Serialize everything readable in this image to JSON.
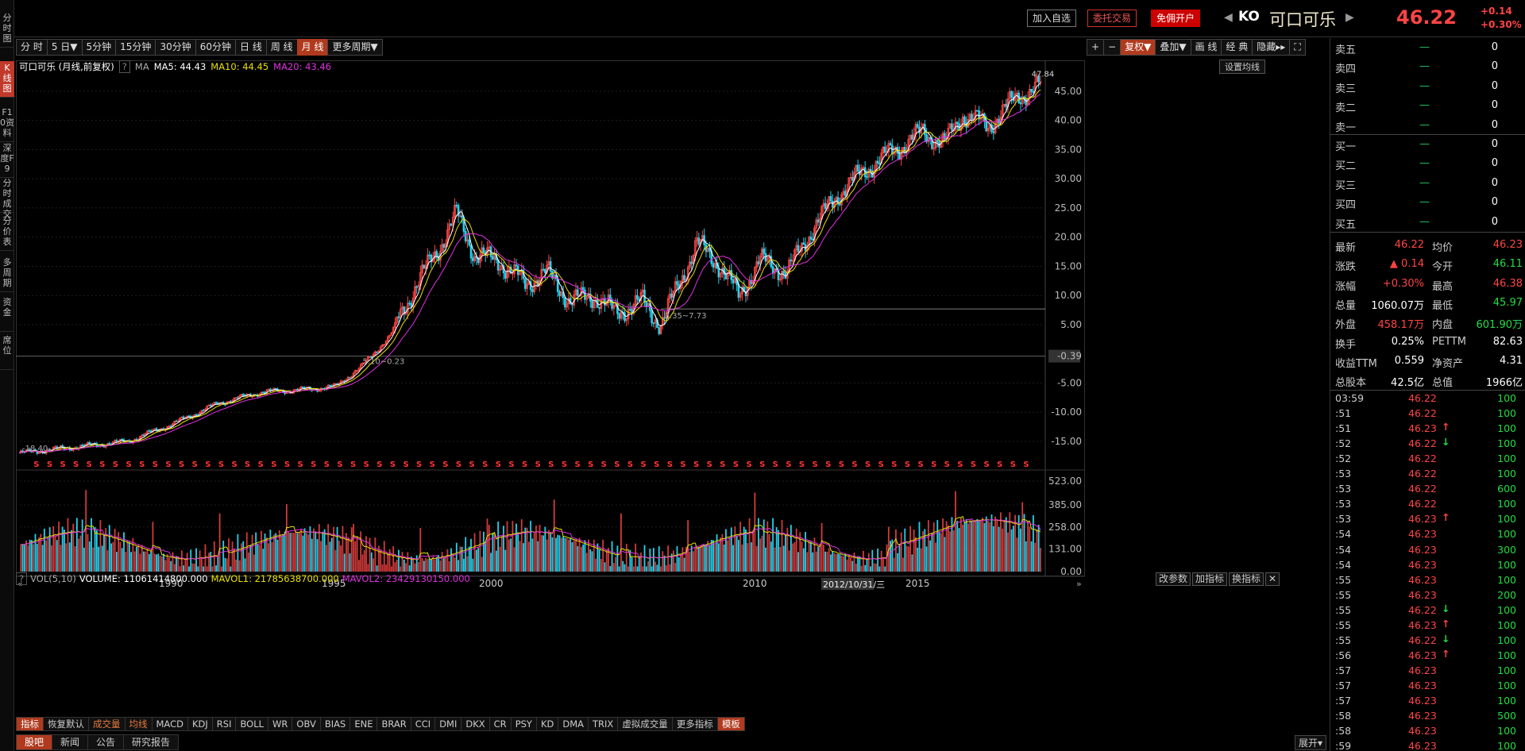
{
  "left_tabs": [
    {
      "label": "分时图",
      "active": false
    },
    {
      "label": "K线图",
      "active": true
    },
    {
      "label": "F10资料",
      "active": false
    },
    {
      "label": "深度F9",
      "active": false
    },
    {
      "label": "分时成交",
      "active": false
    },
    {
      "label": "分价表",
      "active": false
    },
    {
      "label": "多周期",
      "active": false
    },
    {
      "label": "资金",
      "active": false
    },
    {
      "label": "席位",
      "active": false
    }
  ],
  "header": {
    "add_watch": "加入自选",
    "trade": "委托交易",
    "open_account": "免佣开户",
    "code": "KO",
    "name": "可口可乐",
    "price": "46.22",
    "change": "+0.14",
    "change_pct": "+0.30%"
  },
  "periods": [
    "分 时",
    "5 日▼",
    "5分钟",
    "15分钟",
    "30分钟",
    "60分钟",
    "日 线",
    "周 线",
    "月 线",
    "更多周期▼"
  ],
  "active_period": "月 线",
  "tools": [
    "+",
    "−",
    "复权▼",
    "叠加▼",
    "画 线",
    "经 典",
    "隐藏▸▸",
    "⛶"
  ],
  "ma_legend": {
    "title": "可口可乐 (月线,前复权)",
    "help": "?",
    "ma": "MA",
    "ma5": "MA5: 44.43",
    "ma10": "MA10: 44.45",
    "ma20": "MA20: 43.46",
    "set_ma": "设置均线"
  },
  "price_axis": [
    "45.00",
    "40.00",
    "35.00",
    "30.00",
    "25.00",
    "20.00",
    "15.00",
    "10.00",
    "5.00",
    "-0.39",
    "-5.00",
    "-10.00",
    "-15.00"
  ],
  "annotations": {
    "high": "47.84",
    "low1": "3.35~7.73",
    "low2": "5.10~0.23",
    "low3": "-18.40"
  },
  "vol_legend": {
    "help": "?",
    "name": "VOL(5,10)",
    "volume": "VOLUME: 11061414800.000",
    "mavol1": "MAVOL1: 21785638700.000",
    "mavol2": "MAVOL2: 23429130150.000",
    "btn_change": "改参数",
    "btn_add": "加指标",
    "btn_switch": "换指标"
  },
  "vol_axis": [
    "523.00",
    "385.00",
    "258.00",
    "131.00",
    "0.00"
  ],
  "year_labels": [
    "1990",
    "1995",
    "2000",
    "2010",
    "2015"
  ],
  "date_readout": "2012/10/31/三",
  "indicator_tabs": [
    "指标",
    "恢复默认",
    "成交量",
    "均线",
    "MACD",
    "KDJ",
    "RSI",
    "BOLL",
    "WR",
    "OBV",
    "BIAS",
    "ENE",
    "BRAR",
    "CCI",
    "DMI",
    "DKX",
    "CR",
    "PSY",
    "KD",
    "DMA",
    "TRIX",
    "虚拟成交量",
    "更多指标",
    "模板"
  ],
  "news_tabs": [
    "股吧",
    "新闻",
    "公告",
    "研究报告"
  ],
  "expand": "展开▾",
  "order_book": [
    {
      "label": "卖五",
      "qty": "0"
    },
    {
      "label": "卖四",
      "qty": "0"
    },
    {
      "label": "卖三",
      "qty": "0"
    },
    {
      "label": "卖二",
      "qty": "0"
    },
    {
      "label": "卖一",
      "qty": "0"
    },
    {
      "label": "买一",
      "qty": "0"
    },
    {
      "label": "买二",
      "qty": "0"
    },
    {
      "label": "买三",
      "qty": "0"
    },
    {
      "label": "买四",
      "qty": "0"
    },
    {
      "label": "买五",
      "qty": "0"
    }
  ],
  "quote": [
    {
      "l1": "最新",
      "v1": "46.22",
      "c1": "up",
      "l2": "均价",
      "v2": "46.23",
      "c2": "up"
    },
    {
      "l1": "涨跌",
      "v1": "▲ 0.14",
      "c1": "up",
      "l2": "今开",
      "v2": "46.11",
      "c2": "dn"
    },
    {
      "l1": "涨幅",
      "v1": "+0.30%",
      "c1": "up",
      "l2": "最高",
      "v2": "46.38",
      "c2": "up"
    },
    {
      "l1": "总量",
      "v1": "1060.07万",
      "c1": "wh",
      "l2": "最低",
      "v2": "45.97",
      "c2": "dn"
    },
    {
      "l1": "外盘",
      "v1": "458.17万",
      "c1": "up",
      "l2": "内盘",
      "v2": "601.90万",
      "c2": "dn"
    },
    {
      "l1": "换手",
      "v1": "0.25%",
      "c1": "wh",
      "l2": "PETTM",
      "v2": "82.63",
      "c2": "wh"
    },
    {
      "l1": "收益TTM",
      "v1": "0.559",
      "c1": "wh",
      "l2": "净资产",
      "v2": "4.31",
      "c2": "wh"
    },
    {
      "l1": "总股本",
      "v1": "42.5亿",
      "c1": "wh",
      "l2": "总值",
      "v2": "1966亿",
      "c2": "wh"
    }
  ],
  "ticks": [
    {
      "t": "03:59",
      "p": "46.22",
      "a": "",
      "v": "100"
    },
    {
      "t": ":51",
      "p": "46.22",
      "a": "",
      "v": "100"
    },
    {
      "t": ":51",
      "p": "46.23",
      "a": "up",
      "v": "100"
    },
    {
      "t": ":52",
      "p": "46.22",
      "a": "dn",
      "v": "100"
    },
    {
      "t": ":52",
      "p": "46.22",
      "a": "",
      "v": "100"
    },
    {
      "t": ":53",
      "p": "46.22",
      "a": "",
      "v": "100"
    },
    {
      "t": ":53",
      "p": "46.22",
      "a": "",
      "v": "600"
    },
    {
      "t": ":53",
      "p": "46.22",
      "a": "",
      "v": "100"
    },
    {
      "t": ":53",
      "p": "46.23",
      "a": "up",
      "v": "100"
    },
    {
      "t": ":54",
      "p": "46.23",
      "a": "",
      "v": "100"
    },
    {
      "t": ":54",
      "p": "46.23",
      "a": "",
      "v": "300"
    },
    {
      "t": ":54",
      "p": "46.23",
      "a": "",
      "v": "100"
    },
    {
      "t": ":55",
      "p": "46.23",
      "a": "",
      "v": "100"
    },
    {
      "t": ":55",
      "p": "46.23",
      "a": "",
      "v": "200"
    },
    {
      "t": ":55",
      "p": "46.22",
      "a": "dn",
      "v": "100"
    },
    {
      "t": ":55",
      "p": "46.23",
      "a": "up",
      "v": "100"
    },
    {
      "t": ":55",
      "p": "46.22",
      "a": "dn",
      "v": "100"
    },
    {
      "t": ":56",
      "p": "46.23",
      "a": "up",
      "v": "100"
    },
    {
      "t": ":57",
      "p": "46.23",
      "a": "",
      "v": "100"
    },
    {
      "t": ":57",
      "p": "46.23",
      "a": "",
      "v": "100"
    },
    {
      "t": ":57",
      "p": "46.23",
      "a": "",
      "v": "100"
    },
    {
      "t": ":58",
      "p": "46.23",
      "a": "",
      "v": "500"
    },
    {
      "t": ":58",
      "p": "46.23",
      "a": "",
      "v": "100"
    },
    {
      "t": ":59",
      "p": "46.23",
      "a": "",
      "v": "100"
    }
  ],
  "chart_data": {
    "type": "candlestick",
    "x_labels": [
      "1990",
      "1995",
      "2000",
      "2010",
      "2015"
    ],
    "series": [
      {
        "name": "MA5",
        "color": "#ffffff"
      },
      {
        "name": "MA10",
        "color": "#e8e000"
      },
      {
        "name": "MA20",
        "color": "#e030e0"
      }
    ],
    "ylim": [
      -18.4,
      47.84
    ],
    "colors": {
      "up": "#ff4444",
      "down": "#22d3ee",
      "ma5": "#ffffff",
      "ma10": "#e8e000",
      "ma20": "#e030e0"
    }
  }
}
